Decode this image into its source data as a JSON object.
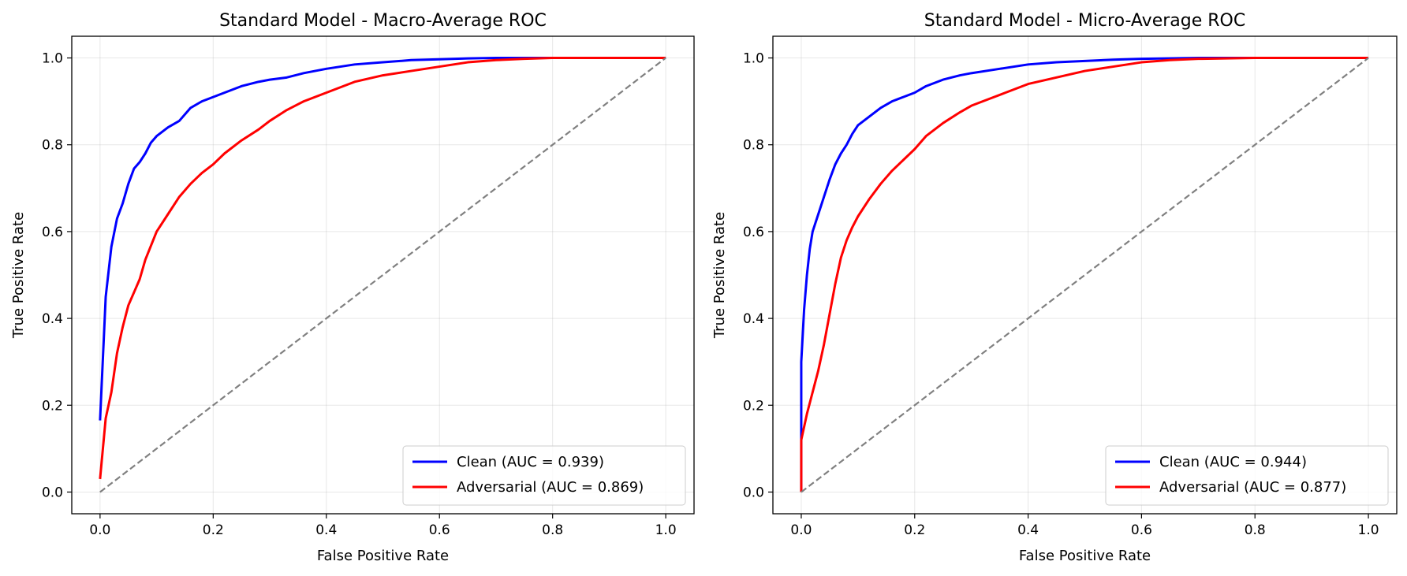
{
  "chart_data": [
    {
      "type": "line",
      "title": "Standard Model - Macro-Average ROC",
      "xlabel": "False Positive Rate",
      "ylabel": "True Positive Rate",
      "xlim": [
        -0.05,
        1.05
      ],
      "ylim": [
        -0.05,
        1.05
      ],
      "xticks": [
        0.0,
        0.2,
        0.4,
        0.6,
        0.8,
        1.0
      ],
      "yticks": [
        0.0,
        0.2,
        0.4,
        0.6,
        0.8,
        1.0
      ],
      "xtick_labels": [
        "0.0",
        "0.2",
        "0.4",
        "0.6",
        "0.8",
        "1.0"
      ],
      "ytick_labels": [
        "0.0",
        "0.2",
        "0.4",
        "0.6",
        "0.8",
        "1.0"
      ],
      "grid": true,
      "legend_position": "lower right",
      "series": [
        {
          "name": "Clean (AUC = 0.939)",
          "color": "#0000ff",
          "x": [
            0.0,
            0.01,
            0.02,
            0.03,
            0.04,
            0.05,
            0.06,
            0.07,
            0.08,
            0.09,
            0.1,
            0.12,
            0.14,
            0.16,
            0.18,
            0.2,
            0.22,
            0.25,
            0.28,
            0.3,
            0.33,
            0.36,
            0.4,
            0.45,
            0.5,
            0.55,
            0.6,
            0.65,
            0.7,
            0.8,
            1.0
          ],
          "y": [
            0.165,
            0.45,
            0.565,
            0.63,
            0.665,
            0.71,
            0.745,
            0.76,
            0.78,
            0.805,
            0.82,
            0.84,
            0.855,
            0.885,
            0.9,
            0.91,
            0.92,
            0.935,
            0.945,
            0.95,
            0.955,
            0.965,
            0.975,
            0.985,
            0.99,
            0.995,
            0.997,
            0.999,
            1.0,
            1.0,
            1.0
          ]
        },
        {
          "name": "Adversarial (AUC = 0.869)",
          "color": "#ff0000",
          "x": [
            0.0,
            0.01,
            0.02,
            0.03,
            0.04,
            0.05,
            0.06,
            0.07,
            0.08,
            0.1,
            0.12,
            0.14,
            0.16,
            0.18,
            0.2,
            0.22,
            0.25,
            0.28,
            0.3,
            0.33,
            0.36,
            0.4,
            0.45,
            0.5,
            0.55,
            0.6,
            0.65,
            0.7,
            0.75,
            0.8,
            1.0
          ],
          "y": [
            0.03,
            0.17,
            0.23,
            0.32,
            0.38,
            0.43,
            0.46,
            0.49,
            0.535,
            0.6,
            0.64,
            0.68,
            0.71,
            0.735,
            0.755,
            0.78,
            0.81,
            0.835,
            0.855,
            0.88,
            0.9,
            0.92,
            0.945,
            0.96,
            0.97,
            0.98,
            0.99,
            0.995,
            0.998,
            1.0,
            1.0
          ]
        },
        {
          "color": "#808080",
          "dashed": true,
          "x": [
            0.0,
            1.0
          ],
          "y": [
            0.0,
            1.0
          ]
        }
      ]
    },
    {
      "type": "line",
      "title": "Standard Model - Micro-Average ROC",
      "xlabel": "False Positive Rate",
      "ylabel": "True Positive Rate",
      "xlim": [
        -0.05,
        1.05
      ],
      "ylim": [
        -0.05,
        1.05
      ],
      "xticks": [
        0.0,
        0.2,
        0.4,
        0.6,
        0.8,
        1.0
      ],
      "yticks": [
        0.0,
        0.2,
        0.4,
        0.6,
        0.8,
        1.0
      ],
      "xtick_labels": [
        "0.0",
        "0.2",
        "0.4",
        "0.6",
        "0.8",
        "1.0"
      ],
      "ytick_labels": [
        "0.0",
        "0.2",
        "0.4",
        "0.6",
        "0.8",
        "1.0"
      ],
      "grid": true,
      "legend_position": "lower right",
      "series": [
        {
          "name": "Clean (AUC = 0.944)",
          "color": "#0000ff",
          "x": [
            0.0,
            0.0,
            0.005,
            0.01,
            0.015,
            0.02,
            0.03,
            0.04,
            0.05,
            0.06,
            0.07,
            0.08,
            0.09,
            0.1,
            0.12,
            0.14,
            0.16,
            0.18,
            0.2,
            0.22,
            0.25,
            0.28,
            0.3,
            0.35,
            0.4,
            0.45,
            0.5,
            0.55,
            0.6,
            0.7,
            0.8,
            1.0
          ],
          "y": [
            0.0,
            0.3,
            0.42,
            0.5,
            0.56,
            0.6,
            0.64,
            0.68,
            0.72,
            0.755,
            0.78,
            0.8,
            0.825,
            0.845,
            0.865,
            0.885,
            0.9,
            0.91,
            0.92,
            0.935,
            0.95,
            0.96,
            0.965,
            0.975,
            0.985,
            0.99,
            0.993,
            0.996,
            0.998,
            1.0,
            1.0,
            1.0
          ]
        },
        {
          "name": "Adversarial (AUC = 0.877)",
          "color": "#ff0000",
          "x": [
            0.0,
            0.0,
            0.005,
            0.01,
            0.02,
            0.03,
            0.04,
            0.05,
            0.06,
            0.07,
            0.08,
            0.09,
            0.1,
            0.12,
            0.14,
            0.16,
            0.18,
            0.2,
            0.22,
            0.25,
            0.28,
            0.3,
            0.33,
            0.36,
            0.4,
            0.45,
            0.5,
            0.55,
            0.6,
            0.65,
            0.7,
            0.8,
            1.0
          ],
          "y": [
            0.0,
            0.12,
            0.15,
            0.18,
            0.23,
            0.28,
            0.34,
            0.41,
            0.48,
            0.54,
            0.58,
            0.61,
            0.635,
            0.675,
            0.71,
            0.74,
            0.765,
            0.79,
            0.82,
            0.85,
            0.875,
            0.89,
            0.905,
            0.92,
            0.94,
            0.955,
            0.97,
            0.98,
            0.99,
            0.995,
            0.998,
            1.0,
            1.0
          ]
        },
        {
          "color": "#808080",
          "dashed": true,
          "x": [
            0.0,
            1.0
          ],
          "y": [
            0.0,
            1.0
          ]
        }
      ]
    }
  ]
}
